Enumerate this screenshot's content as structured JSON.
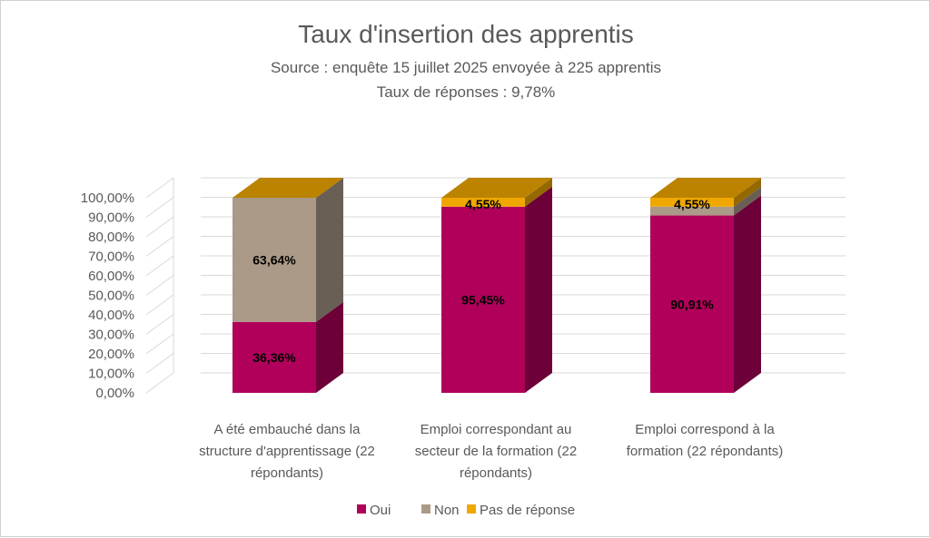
{
  "chart_data": {
    "type": "bar",
    "stacked": true,
    "three_d": true,
    "title": "Taux d'insertion des apprentis",
    "subtitle_lines": [
      "Source : enquête 15 juillet 2025 envoyée à 225 apprentis",
      "Taux de réponses : 9,78%"
    ],
    "categories": [
      [
        "A été embauché dans la",
        "structure d'apprentissage (22",
        "répondants)"
      ],
      [
        "Emploi correspondant au",
        "secteur de la formation (22",
        "répondants)"
      ],
      [
        "Emploi correspond à la",
        "formation (22 répondants)"
      ]
    ],
    "y_ticks": [
      "0,00%",
      "10,00%",
      "20,00%",
      "30,00%",
      "40,00%",
      "50,00%",
      "60,00%",
      "70,00%",
      "80,00%",
      "90,00%",
      "100,00%"
    ],
    "ylim": [
      0,
      100
    ],
    "grid": true,
    "legend_position": "bottom",
    "series": [
      {
        "name": "Oui",
        "color": "#B0005A",
        "values": [
          36.36,
          95.45,
          90.91
        ],
        "labels": [
          "36,36%",
          "95,45%",
          "90,91%"
        ]
      },
      {
        "name": "Non",
        "color": "#AB9A87",
        "values": [
          63.64,
          0,
          4.55
        ],
        "labels": [
          "63,64%",
          "",
          ""
        ]
      },
      {
        "name": "Pas de réponse",
        "color": "#F0A800",
        "values": [
          0,
          4.55,
          4.55
        ],
        "labels": [
          "",
          "4,55%",
          "4,55%"
        ]
      }
    ]
  }
}
